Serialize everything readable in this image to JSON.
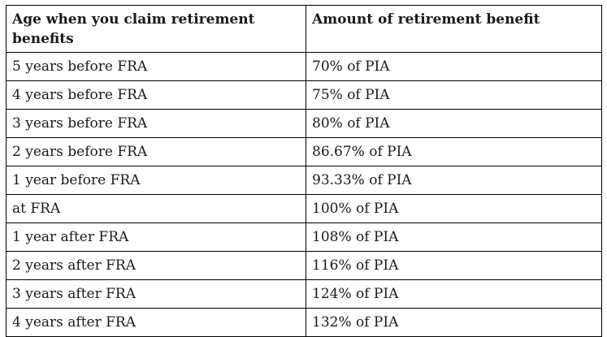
{
  "table": {
    "headers": [
      "Age when you claim retirement benefits",
      "Amount of retirement benefit"
    ],
    "rows": [
      [
        "5 years before FRA",
        "70% of PIA"
      ],
      [
        "4 years before FRA",
        "75% of PIA"
      ],
      [
        "3 years before FRA",
        "80% of PIA"
      ],
      [
        "2 years before FRA",
        "86.67% of PIA"
      ],
      [
        "1 year before FRA",
        "93.33% of PIA"
      ],
      [
        "at FRA",
        "100% of PIA"
      ],
      [
        "1 year after FRA",
        "108% of PIA"
      ],
      [
        "2 years after FRA",
        "116% of PIA"
      ],
      [
        "3 years after FRA",
        "124% of PIA"
      ],
      [
        "4 years after FRA",
        "132% of PIA"
      ]
    ]
  }
}
